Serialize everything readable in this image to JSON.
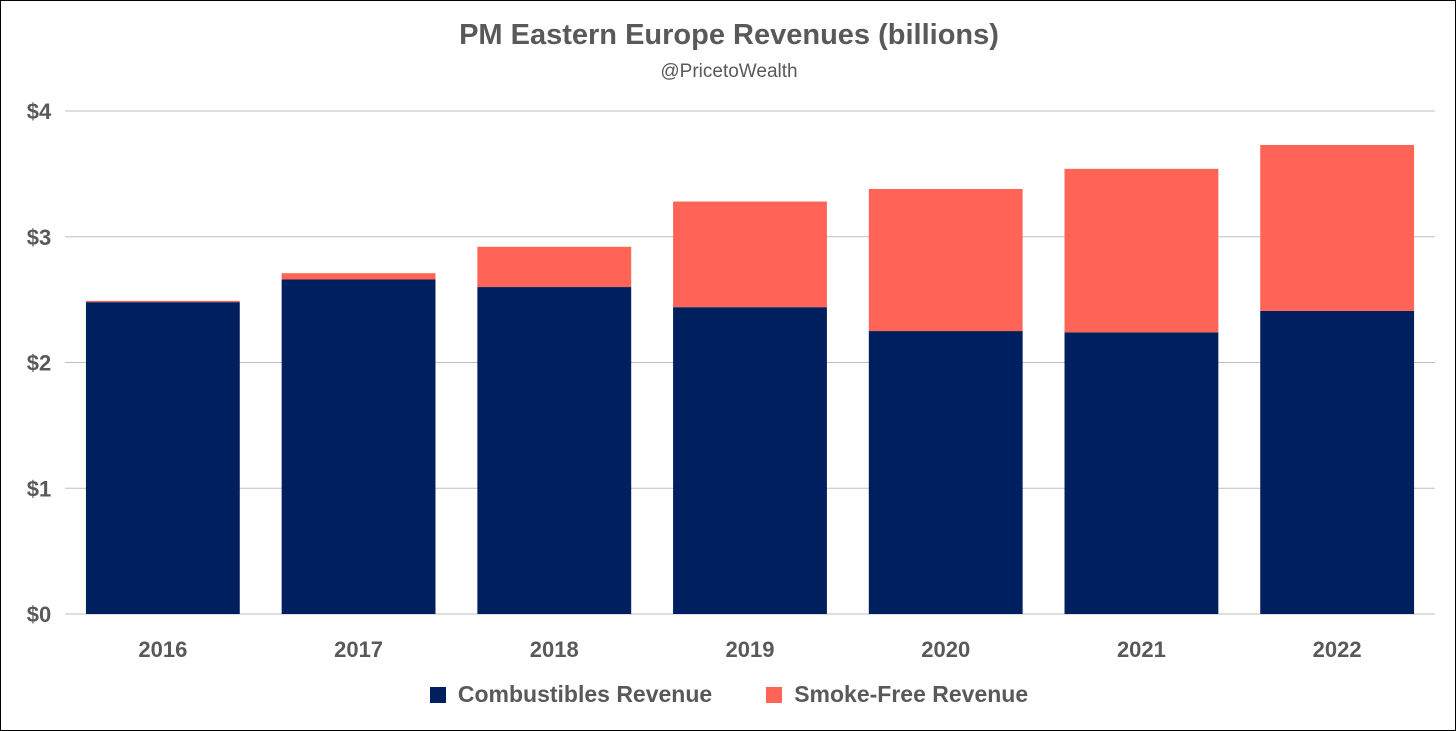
{
  "chart_data": {
    "type": "bar",
    "stacked": true,
    "title": "PM Eastern Europe Revenues (billions)",
    "subtitle": "@PricetoWealth",
    "categories": [
      "2016",
      "2017",
      "2018",
      "2019",
      "2020",
      "2021",
      "2022"
    ],
    "series": [
      {
        "name": "Combustibles Revenue",
        "color": "#001f5f",
        "values": [
          2.48,
          2.66,
          2.6,
          2.44,
          2.25,
          2.24,
          2.41
        ]
      },
      {
        "name": "Smoke-Free Revenue",
        "color": "#ff6457",
        "values": [
          0.01,
          0.05,
          0.32,
          0.84,
          1.13,
          1.3,
          1.32
        ]
      }
    ],
    "yticks": [
      0,
      1,
      2,
      3,
      4
    ],
    "ytick_labels": [
      "$0",
      "$1",
      "$2",
      "$3",
      "$4"
    ],
    "ylim": [
      0,
      4
    ],
    "grid": true,
    "legend_position": "bottom",
    "xlabel": "",
    "ylabel": ""
  }
}
